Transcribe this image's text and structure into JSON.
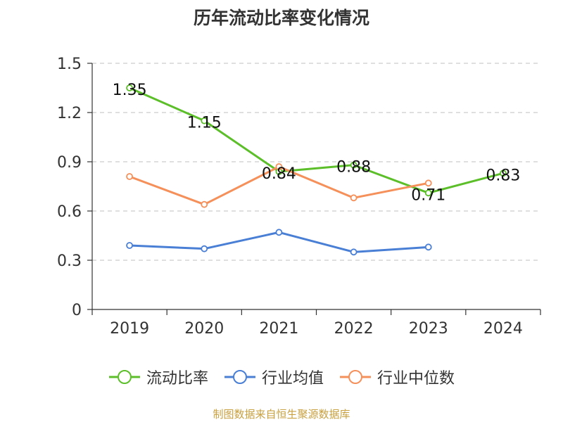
{
  "source": "制图数据来自恒生聚源数据库",
  "chart_data": {
    "type": "line",
    "title": "历年流动比率变化情况",
    "categories": [
      "2019",
      "2020",
      "2021",
      "2022",
      "2023",
      "2024"
    ],
    "ylim": [
      0,
      1.5
    ],
    "yticks": [
      0,
      0.3,
      0.6,
      0.9,
      1.2,
      1.5
    ],
    "ytick_labels": [
      "0",
      "0.3",
      "0.6",
      "0.9",
      "1.2",
      "1.5"
    ],
    "grid": true,
    "legend": "bottom",
    "series": [
      {
        "name": "流动比率",
        "color": "#5cbf2a",
        "values": [
          1.35,
          1.15,
          0.84,
          0.88,
          0.71,
          0.83
        ],
        "labels": [
          "1.35",
          "1.15",
          "0.84",
          "0.88",
          "0.71",
          "0.83"
        ]
      },
      {
        "name": "行业均值",
        "color": "#4a7fd6",
        "values": [
          0.39,
          0.37,
          0.47,
          0.35,
          0.38,
          null
        ]
      },
      {
        "name": "行业中位数",
        "color": "#f5905a",
        "values": [
          0.81,
          0.64,
          0.87,
          0.68,
          0.77,
          null
        ]
      }
    ]
  }
}
